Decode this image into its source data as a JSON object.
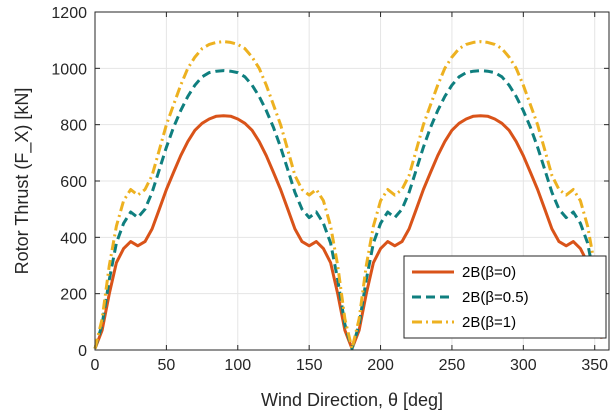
{
  "chart_data": {
    "type": "line",
    "xlabel": "Wind Direction, θ [deg]",
    "ylabel": "Rotor Thrust (F_X) [kN]",
    "xlim": [
      0,
      360
    ],
    "ylim": [
      0,
      1200
    ],
    "xticks": [
      0,
      50,
      100,
      150,
      200,
      250,
      300,
      350
    ],
    "yticks": [
      0,
      200,
      400,
      600,
      800,
      1000,
      1200
    ],
    "grid": true,
    "legend_position": "bottom-right",
    "colors": {
      "axis": "#262626",
      "grid": "#e5e5e5"
    },
    "series": [
      {
        "name": "2B(β=0)",
        "color": "#d95319",
        "style": "solid",
        "x": [
          0,
          5,
          10,
          15,
          20,
          25,
          30,
          35,
          40,
          45,
          50,
          55,
          60,
          65,
          70,
          75,
          80,
          85,
          90,
          95,
          100,
          105,
          110,
          115,
          120,
          125,
          130,
          135,
          140,
          145,
          150,
          155,
          160,
          165,
          170,
          175,
          180,
          185,
          190,
          195,
          200,
          205,
          210,
          215,
          220,
          225,
          230,
          235,
          240,
          245,
          250,
          255,
          260,
          265,
          270,
          275,
          280,
          285,
          290,
          295,
          300,
          305,
          310,
          315,
          320,
          325,
          330,
          335,
          340,
          345,
          350,
          355
        ],
        "y": [
          5,
          70,
          200,
          310,
          360,
          385,
          370,
          385,
          430,
          500,
          570,
          630,
          690,
          740,
          780,
          805,
          820,
          830,
          832,
          830,
          820,
          805,
          780,
          740,
          690,
          630,
          570,
          500,
          430,
          385,
          370,
          385,
          360,
          310,
          200,
          70,
          5,
          70,
          200,
          310,
          360,
          385,
          370,
          385,
          430,
          500,
          570,
          630,
          690,
          740,
          780,
          805,
          820,
          830,
          832,
          830,
          820,
          805,
          780,
          740,
          690,
          630,
          570,
          500,
          430,
          385,
          370,
          385,
          360,
          310,
          200,
          40
        ]
      },
      {
        "name": "2B(β=0.5)",
        "color": "#0f7f7f",
        "style": "dashed",
        "x": [
          0,
          5,
          10,
          15,
          20,
          25,
          30,
          35,
          40,
          45,
          50,
          55,
          60,
          65,
          70,
          75,
          80,
          85,
          90,
          95,
          100,
          105,
          110,
          115,
          120,
          125,
          130,
          135,
          140,
          145,
          150,
          155,
          160,
          165,
          170,
          175,
          180,
          185,
          190,
          195,
          200,
          205,
          210,
          215,
          220,
          225,
          230,
          235,
          240,
          245,
          250,
          255,
          260,
          265,
          270,
          275,
          280,
          285,
          290,
          295,
          300,
          305,
          310,
          315,
          320,
          325,
          330,
          335,
          340,
          345,
          350,
          355
        ],
        "y": [
          5,
          90,
          250,
          380,
          450,
          490,
          470,
          500,
          560,
          640,
          720,
          790,
          850,
          900,
          940,
          970,
          985,
          990,
          992,
          990,
          985,
          970,
          940,
          900,
          850,
          790,
          720,
          640,
          560,
          500,
          470,
          490,
          450,
          380,
          250,
          90,
          5,
          90,
          250,
          380,
          450,
          490,
          470,
          500,
          560,
          640,
          720,
          790,
          850,
          900,
          940,
          970,
          985,
          990,
          992,
          990,
          985,
          970,
          940,
          900,
          850,
          790,
          720,
          640,
          560,
          500,
          470,
          490,
          450,
          380,
          250,
          50
        ]
      },
      {
        "name": "2B(β=1)",
        "color": "#edb120",
        "style": "dashdot",
        "x": [
          0,
          5,
          10,
          15,
          20,
          25,
          30,
          35,
          40,
          45,
          50,
          55,
          60,
          65,
          70,
          75,
          80,
          85,
          90,
          95,
          100,
          105,
          110,
          115,
          120,
          125,
          130,
          135,
          140,
          145,
          150,
          155,
          160,
          165,
          170,
          175,
          180,
          185,
          190,
          195,
          200,
          205,
          210,
          215,
          220,
          225,
          230,
          235,
          240,
          245,
          250,
          255,
          260,
          265,
          270,
          275,
          280,
          285,
          290,
          295,
          300,
          305,
          310,
          315,
          320,
          325,
          330,
          335,
          340,
          345,
          350,
          355
        ],
        "y": [
          5,
          110,
          300,
          440,
          530,
          570,
          550,
          570,
          620,
          710,
          800,
          870,
          940,
          1000,
          1040,
          1070,
          1085,
          1092,
          1095,
          1092,
          1085,
          1070,
          1040,
          1000,
          940,
          870,
          800,
          710,
          620,
          570,
          550,
          570,
          530,
          440,
          300,
          110,
          5,
          110,
          300,
          440,
          530,
          570,
          550,
          570,
          620,
          710,
          800,
          870,
          940,
          1000,
          1040,
          1070,
          1085,
          1092,
          1095,
          1092,
          1085,
          1070,
          1040,
          1000,
          940,
          870,
          800,
          710,
          620,
          570,
          550,
          570,
          530,
          440,
          300,
          60
        ]
      }
    ]
  }
}
